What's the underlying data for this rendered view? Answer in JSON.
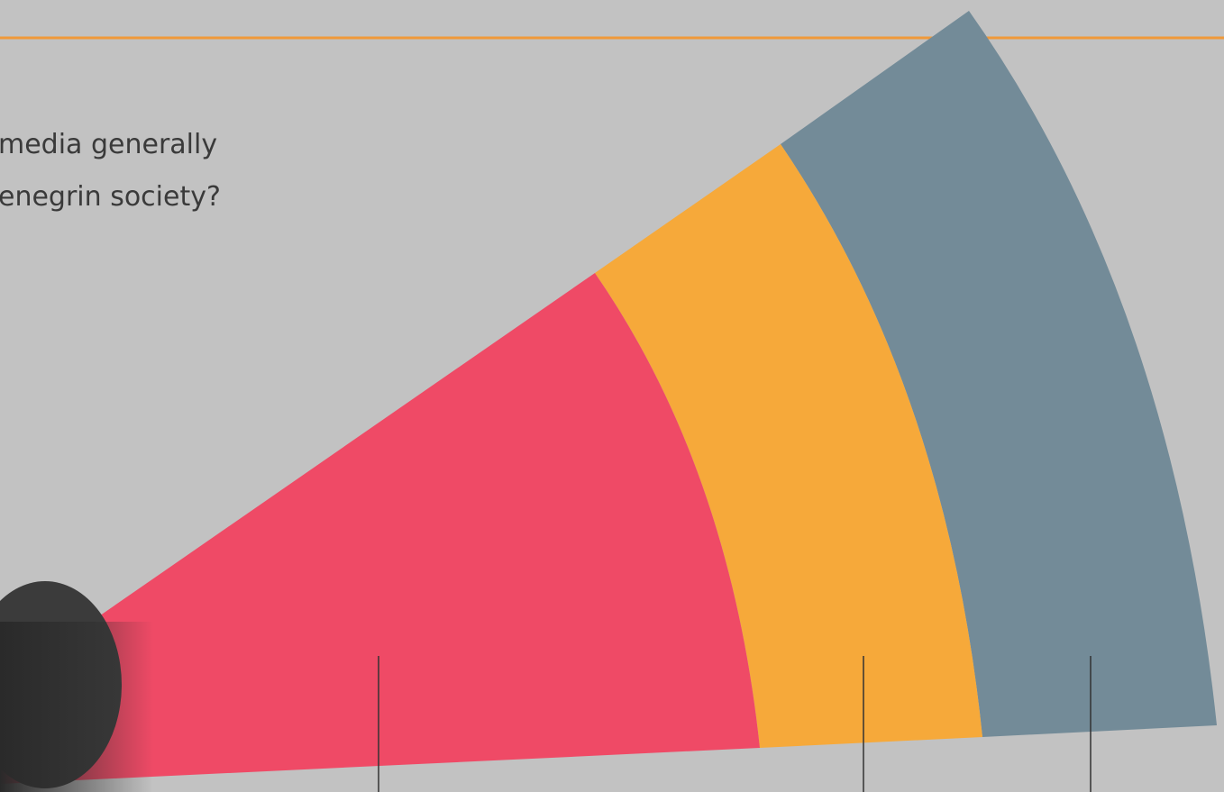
{
  "question": {
    "lines": [
      "media generally",
      "enegrin society?"
    ]
  }
}
